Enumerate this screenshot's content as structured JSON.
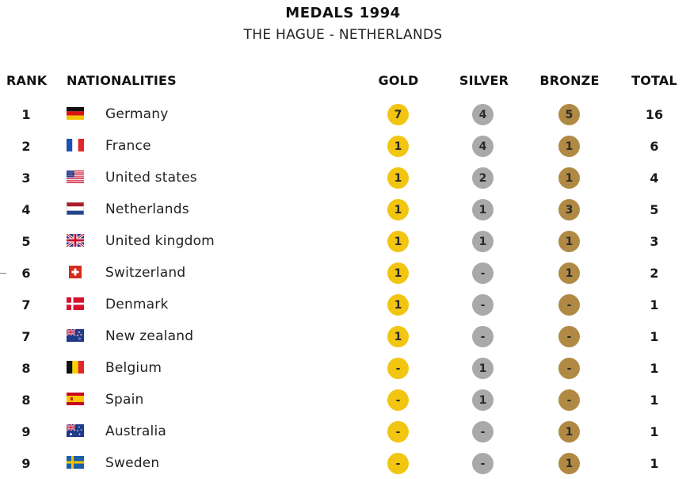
{
  "title": "MEDALS 1994",
  "subtitle": "THE HAGUE - NETHERLANDS",
  "colors": {
    "gold": "#f2c510",
    "silver": "#a9a9a9",
    "bronze": "#b08a45"
  },
  "headers": {
    "rank": "RANK",
    "nationalities": "NATIONALITIES",
    "gold": "GOLD",
    "silver": "SILVER",
    "bronze": "BRONZE",
    "total": "TOTAL"
  },
  "rows": [
    {
      "rank": "1",
      "flag": "germany-flag-icon",
      "country": "Germany",
      "gold": "7",
      "silver": "4",
      "bronze": "5",
      "total": "16"
    },
    {
      "rank": "2",
      "flag": "france-flag-icon",
      "country": "France",
      "gold": "1",
      "silver": "4",
      "bronze": "1",
      "total": "6"
    },
    {
      "rank": "3",
      "flag": "usa-flag-icon",
      "country": "United states",
      "gold": "1",
      "silver": "2",
      "bronze": "1",
      "total": "4"
    },
    {
      "rank": "4",
      "flag": "netherlands-flag-icon",
      "country": "Netherlands",
      "gold": "1",
      "silver": "1",
      "bronze": "3",
      "total": "5"
    },
    {
      "rank": "5",
      "flag": "uk-flag-icon",
      "country": "United kingdom",
      "gold": "1",
      "silver": "1",
      "bronze": "1",
      "total": "3"
    },
    {
      "rank": "6",
      "flag": "switzerland-flag-icon",
      "country": "Switzerland",
      "gold": "1",
      "silver": "-",
      "bronze": "1",
      "total": "2"
    },
    {
      "rank": "7",
      "flag": "denmark-flag-icon",
      "country": "Denmark",
      "gold": "1",
      "silver": "-",
      "bronze": "-",
      "total": "1"
    },
    {
      "rank": "7",
      "flag": "new-zealand-flag-icon",
      "country": "New zealand",
      "gold": "1",
      "silver": "-",
      "bronze": "-",
      "total": "1"
    },
    {
      "rank": "8",
      "flag": "belgium-flag-icon",
      "country": "Belgium",
      "gold": "-",
      "silver": "1",
      "bronze": "-",
      "total": "1"
    },
    {
      "rank": "8",
      "flag": "spain-flag-icon",
      "country": "Spain",
      "gold": "-",
      "silver": "1",
      "bronze": "-",
      "total": "1"
    },
    {
      "rank": "9",
      "flag": "australia-flag-icon",
      "country": "Australia",
      "gold": "-",
      "silver": "-",
      "bronze": "1",
      "total": "1"
    },
    {
      "rank": "9",
      "flag": "sweden-flag-icon",
      "country": "Sweden",
      "gold": "-",
      "silver": "-",
      "bronze": "1",
      "total": "1"
    }
  ]
}
